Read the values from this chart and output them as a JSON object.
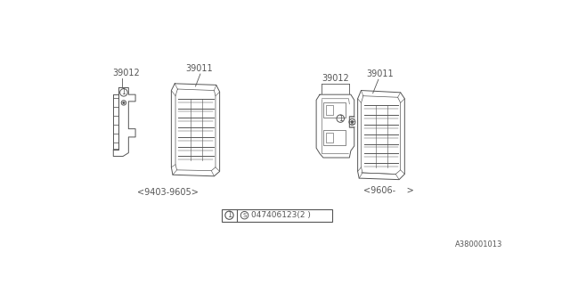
{
  "bg_color": "#ffffff",
  "line_color": "#555555",
  "text_color": "#555555",
  "label_39012_left": "39012",
  "label_39011_left": "39011",
  "label_39012_right": "39012",
  "label_39011_right": "39011",
  "caption_left": "<9403-9605>",
  "caption_right": "<9606-    >",
  "footnote": "A380001013",
  "fig_width": 6.4,
  "fig_height": 3.2
}
